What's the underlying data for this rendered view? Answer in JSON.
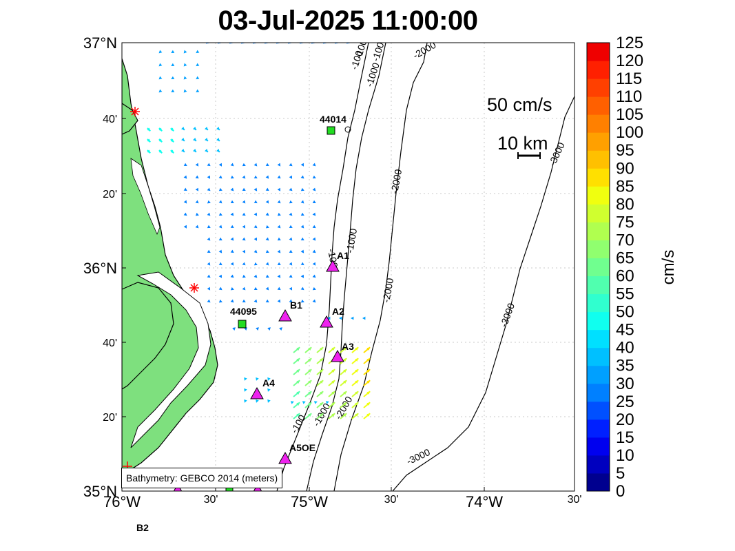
{
  "title": "03-Jul-2025 11:00:00",
  "credit": "Bathymetry: GEBCO 2014 (meters)",
  "scale": {
    "speed_label": "50 cm/s",
    "distance_label": "10 km"
  },
  "colorbar": {
    "label": "cm/s",
    "ticks": [
      "0",
      "5",
      "10",
      "15",
      "20",
      "25",
      "30",
      "35",
      "40",
      "45",
      "50",
      "55",
      "60",
      "65",
      "70",
      "75",
      "80",
      "85",
      "90",
      "95",
      "100",
      "105",
      "110",
      "115",
      "120",
      "125"
    ],
    "colors": [
      "#00008f",
      "#0000bf",
      "#0000ef",
      "#0020ff",
      "#0050ff",
      "#0080ff",
      "#00a0ff",
      "#00c0ff",
      "#00e0ff",
      "#10ffef",
      "#30ffcf",
      "#50ffaf",
      "#70ff8f",
      "#90ff6f",
      "#b0ff4f",
      "#d0ff2f",
      "#f0ff0f",
      "#ffe000",
      "#ffc000",
      "#ffa000",
      "#ff8000",
      "#ff6000",
      "#ff4000",
      "#ff2000",
      "#ef0000"
    ]
  },
  "axes": {
    "y_ticks": [
      {
        "label": "37°N",
        "major": true
      },
      {
        "label": "40'",
        "major": false
      },
      {
        "label": "20'",
        "major": false
      },
      {
        "label": "36°N",
        "major": true
      },
      {
        "label": "40'",
        "major": false
      },
      {
        "label": "20'",
        "major": false
      },
      {
        "label": "35°N",
        "major": true
      }
    ],
    "x_ticks": [
      {
        "label": "76°W",
        "major": true
      },
      {
        "label": "30'",
        "major": false
      },
      {
        "label": "75°W",
        "major": true
      },
      {
        "label": "30'",
        "major": false
      },
      {
        "label": "74°W",
        "major": true
      },
      {
        "label": "30'",
        "major": false
      }
    ]
  },
  "stations": [
    {
      "name": "44014",
      "type": "buoy"
    },
    {
      "name": "A1",
      "type": "radar"
    },
    {
      "name": "B1",
      "type": "radar"
    },
    {
      "name": "44095",
      "type": "buoy"
    },
    {
      "name": "A2",
      "type": "radar"
    },
    {
      "name": "A3",
      "type": "radar"
    },
    {
      "name": "A4",
      "type": "radar"
    },
    {
      "name": "A5OE",
      "type": "radar"
    },
    {
      "name": "B2",
      "type": "radar"
    }
  ],
  "contour_labels": [
    "-100",
    "-1000",
    "-2000",
    "-2000",
    "-1000",
    "-100",
    "-2000",
    "-3000",
    "-3000",
    "-100",
    "-1000",
    "-2000",
    "-3000",
    "-1000",
    "-100"
  ],
  "colors": {
    "land": "#7ee07e",
    "buoy": "#22dd22",
    "radar": "#ee22ee",
    "marker": "#ff0000"
  }
}
